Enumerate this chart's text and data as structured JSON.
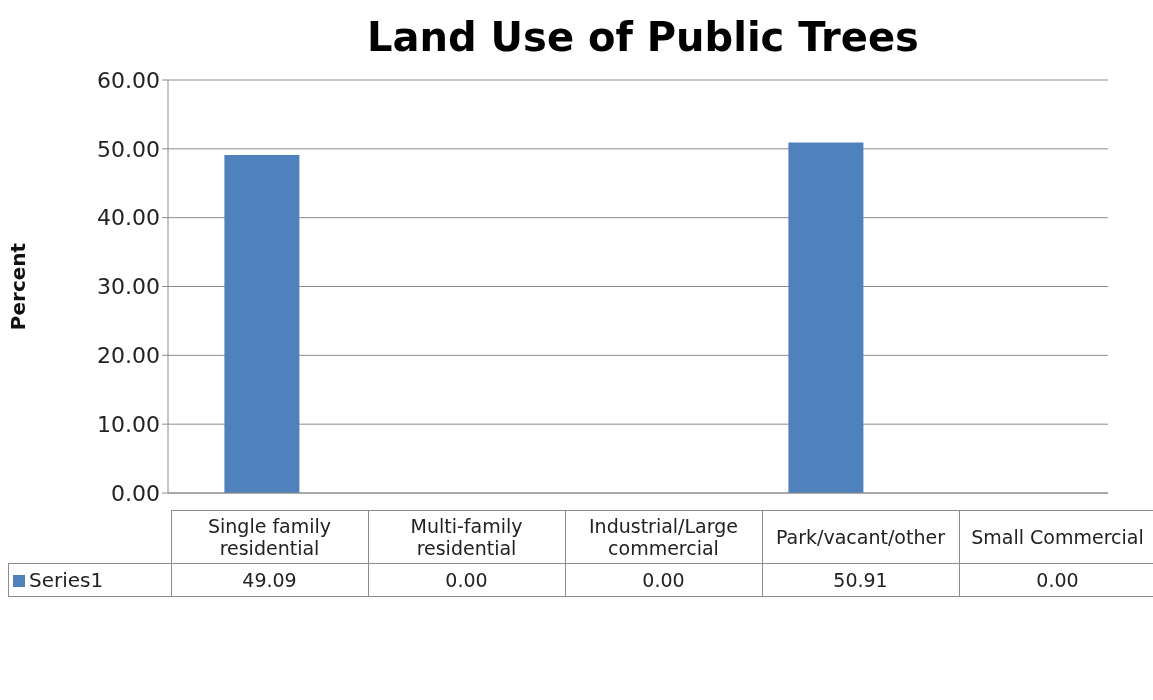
{
  "chart_data": {
    "type": "bar",
    "title": "Land Use of Public Trees",
    "ylabel": "Percent",
    "categories": [
      "Single family residential",
      "Multi-family residential",
      "Industrial/Large commercial",
      "Park/vacant/other",
      "Small Commercial"
    ],
    "series": [
      {
        "name": "Series1",
        "color": "#4f81bd",
        "values": [
          49.09,
          0,
          0,
          50.91,
          0
        ],
        "value_labels": [
          "49.09",
          "0.00",
          "0.00",
          "50.91",
          "0.00"
        ]
      }
    ],
    "ylim": [
      0,
      60
    ],
    "yticks": [
      {
        "value": 0,
        "label": "0.00"
      },
      {
        "value": 10,
        "label": "10.00"
      },
      {
        "value": 20,
        "label": "20.00"
      },
      {
        "value": 30,
        "label": "30.00"
      },
      {
        "value": 40,
        "label": "40.00"
      },
      {
        "value": 50,
        "label": "50.00"
      },
      {
        "value": 60,
        "label": "60.00"
      }
    ],
    "grid": "y",
    "legend": "bottom"
  }
}
